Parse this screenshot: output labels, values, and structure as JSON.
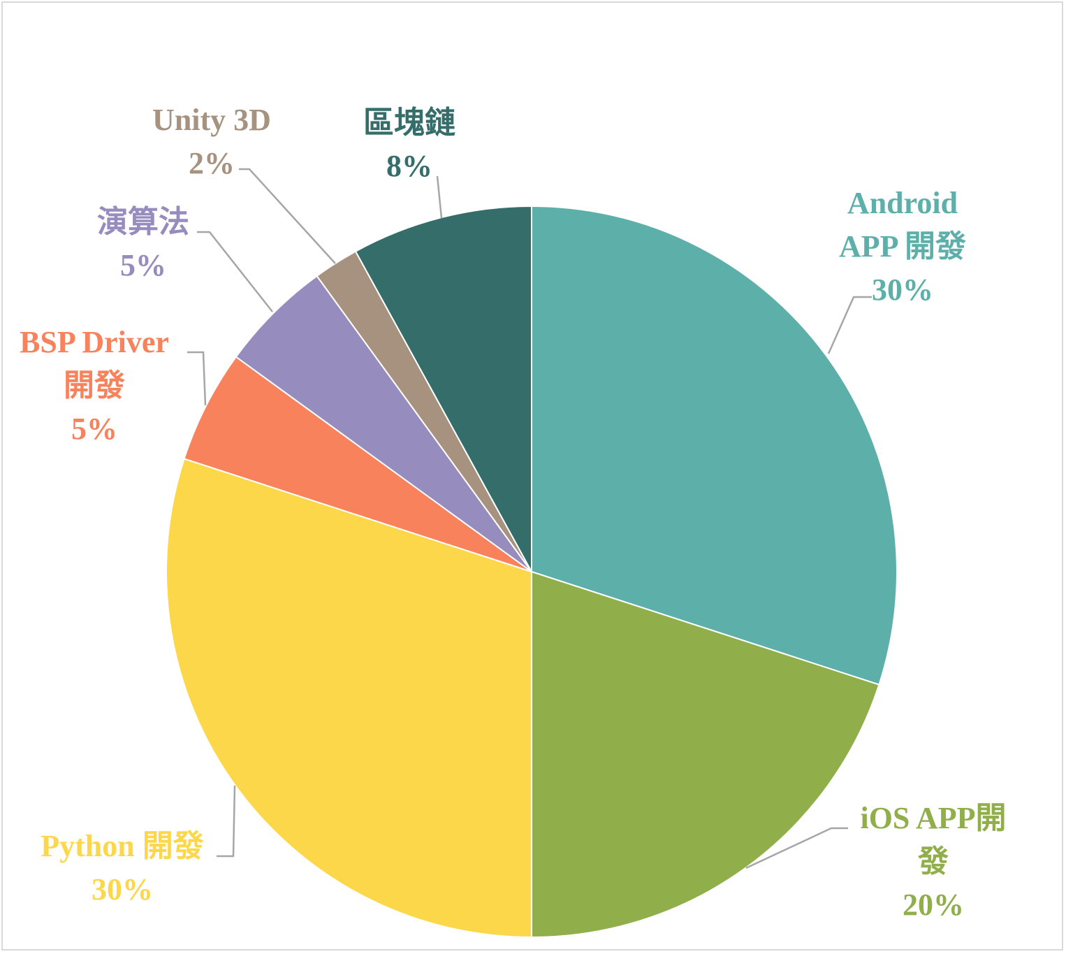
{
  "chart_data": {
    "type": "pie",
    "title": "",
    "slices": [
      {
        "label_lines": [
          "Android",
          "APP 開發"
        ],
        "value": 30,
        "value_label": "30%",
        "color": "#5DB0AA"
      },
      {
        "label_lines": [
          "iOS APP開",
          "發"
        ],
        "value": 20,
        "value_label": "20%",
        "color": "#90AE4A"
      },
      {
        "label_lines": [
          "Python 開發"
        ],
        "value": 30,
        "value_label": "30%",
        "color": "#FDD74A"
      },
      {
        "label_lines": [
          "BSP Driver",
          "開發"
        ],
        "value": 5,
        "value_label": "5%",
        "color": "#F7825C"
      },
      {
        "label_lines": [
          "演算法"
        ],
        "value": 5,
        "value_label": "5%",
        "color": "#968CBE"
      },
      {
        "label_lines": [
          "Unity 3D"
        ],
        "value": 2,
        "value_label": "2%",
        "color": "#A6927E"
      },
      {
        "label_lines": [
          "區塊鏈"
        ],
        "value": 8,
        "value_label": "8%",
        "color": "#346D69"
      }
    ],
    "start": "12 o'clock",
    "direction": "clockwise",
    "legend": "none",
    "leader_line_color": "#a6a6a6"
  }
}
